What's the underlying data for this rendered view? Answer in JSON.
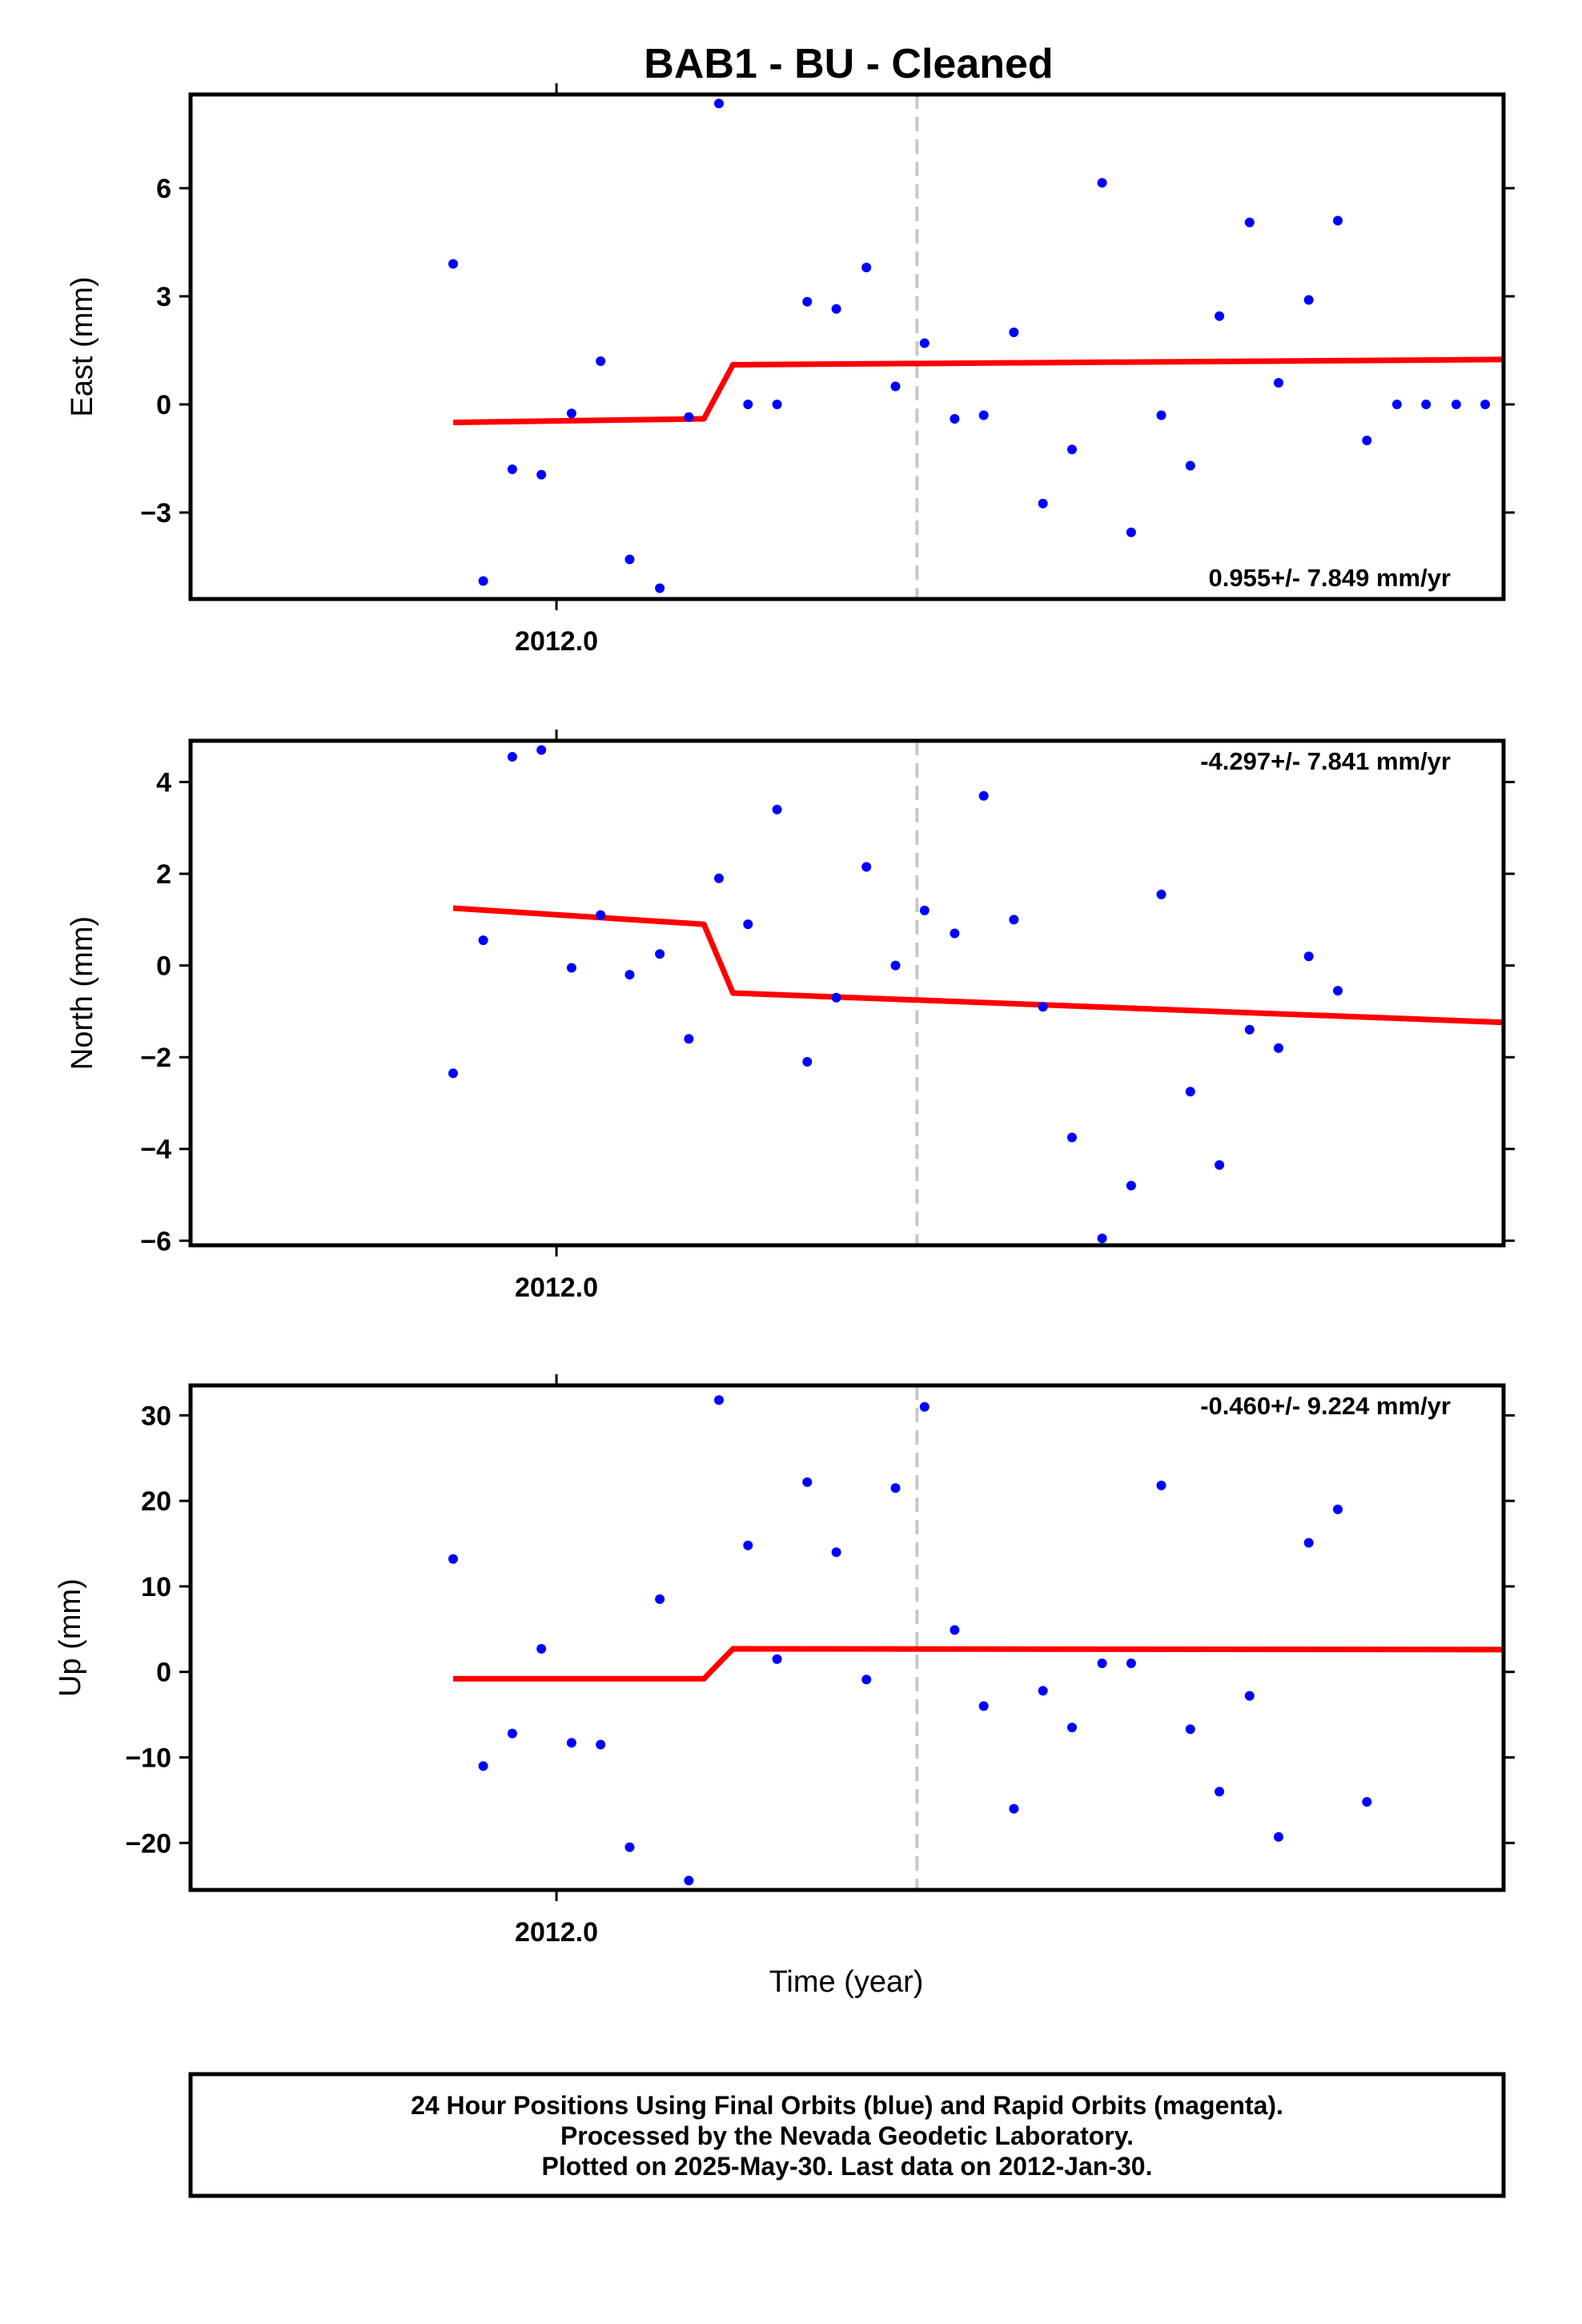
{
  "chart_data": [
    {
      "type": "scatter",
      "title": "BAB1  - BU - Cleaned",
      "ylabel": "East (mm)",
      "xlabel": "",
      "x_tick_labels": [
        "2012.0"
      ],
      "x_tick_values": [
        2012.0
      ],
      "ylim": [
        -5.4,
        8.6
      ],
      "xlim": [
        2011.966,
        2012.088
      ],
      "y_ticks": [
        6,
        3,
        0,
        -3
      ],
      "y_tick_labels": [
        "6",
        "3",
        "0",
        "−3"
      ],
      "rate_label": "0.955+/- 7.849 mm/yr",
      "event_line_x": 2012.0335,
      "grid": false,
      "series": [
        {
          "marker_color": "#0000ff",
          "x": [
            2011.9904,
            2011.9932,
            2011.9959,
            2011.9986,
            2012.0014,
            2012.0041,
            2012.0068,
            2012.0096,
            2012.0123,
            2012.0151,
            2012.0178,
            2012.0205,
            2012.0233,
            2012.026,
            2012.0288,
            2012.0315,
            2012.0342,
            2012.037,
            2012.0397,
            2012.0425,
            2012.0452,
            2012.0479,
            2012.0507,
            2012.0534,
            2012.0562,
            2012.0589,
            2012.0616,
            2012.0644,
            2012.0671,
            2012.0699,
            2012.0726,
            2012.0753,
            2012.0781,
            2012.0808,
            2012.0836,
            2012.0863,
            2012.089
          ],
          "y": [
            3.9,
            -4.9,
            -1.8,
            -1.95,
            -0.25,
            1.2,
            -4.3,
            -5.1,
            -0.35,
            8.35,
            0.0,
            0.0,
            2.85,
            2.65,
            3.8,
            0.5,
            1.7,
            -0.4,
            -0.3,
            2.0,
            -2.75,
            -1.25,
            6.15,
            -3.55,
            -0.3,
            -1.7,
            2.45,
            5.05,
            0.6,
            2.9,
            5.1,
            -1.0,
            0,
            0,
            0,
            0,
            0
          ]
        }
      ],
      "fit": {
        "color": "#ff0000",
        "x": [
          2011.9904,
          2012.0137,
          2012.0164,
          2012.089
        ],
        "y": [
          -0.5,
          -0.4,
          1.1,
          1.25
        ]
      }
    },
    {
      "type": "scatter",
      "ylabel": "North (mm)",
      "xlabel": "",
      "x_tick_labels": [
        "2012.0"
      ],
      "x_tick_values": [
        2012.0
      ],
      "ylim": [
        -6.1,
        4.9
      ],
      "xlim": [
        2011.966,
        2012.088
      ],
      "y_ticks": [
        4,
        2,
        0,
        -2,
        -4,
        -6
      ],
      "y_tick_labels": [
        "4",
        "2",
        "0",
        "−2",
        "−4",
        "−6"
      ],
      "rate_label": "-4.297+/- 7.841 mm/yr",
      "event_line_x": 2012.0335,
      "grid": false,
      "series": [
        {
          "marker_color": "#0000ff",
          "x": [
            2011.9904,
            2011.9932,
            2011.9959,
            2011.9986,
            2012.0014,
            2012.0041,
            2012.0068,
            2012.0096,
            2012.0123,
            2012.0151,
            2012.0178,
            2012.0205,
            2012.0233,
            2012.026,
            2012.0288,
            2012.0315,
            2012.0342,
            2012.037,
            2012.0397,
            2012.0425,
            2012.0452,
            2012.0479,
            2012.0507,
            2012.0534,
            2012.0562,
            2012.0589,
            2012.0616,
            2012.0644,
            2012.0671,
            2012.0699,
            2012.0726
          ],
          "y": [
            -2.35,
            0.55,
            4.55,
            4.7,
            -0.05,
            1.1,
            -0.2,
            0.25,
            -1.6,
            1.9,
            0.9,
            3.4,
            -2.1,
            -0.7,
            2.15,
            0.0,
            1.2,
            0.7,
            3.7,
            1.0,
            -0.9,
            -3.75,
            -5.95,
            -4.8,
            1.55,
            -2.75,
            -4.35,
            -1.4,
            -1.8,
            0.2,
            -0.55
          ]
        }
      ],
      "fit": {
        "color": "#ff0000",
        "x": [
          2011.9904,
          2012.0137,
          2012.0164,
          2012.089
        ],
        "y": [
          1.25,
          0.9,
          -0.6,
          -1.25
        ]
      }
    },
    {
      "type": "scatter",
      "ylabel": "Up (mm)",
      "xlabel": "Time (year)",
      "x_tick_labels": [
        "2012.0"
      ],
      "x_tick_values": [
        2012.0
      ],
      "ylim": [
        -25.5,
        33.5
      ],
      "xlim": [
        2011.966,
        2012.088
      ],
      "y_ticks": [
        30,
        20,
        10,
        0,
        -10,
        -20
      ],
      "y_tick_labels": [
        "30",
        "20",
        "10",
        "0",
        "−10",
        "−20"
      ],
      "rate_label": "-0.460+/- 9.224 mm/yr",
      "event_line_x": 2012.0335,
      "grid": false,
      "series": [
        {
          "marker_color": "#0000ff",
          "x": [
            2011.9904,
            2011.9932,
            2011.9959,
            2011.9986,
            2012.0014,
            2012.0041,
            2012.0068,
            2012.0096,
            2012.0123,
            2012.0151,
            2012.0178,
            2012.0205,
            2012.0233,
            2012.026,
            2012.0288,
            2012.0315,
            2012.0342,
            2012.037,
            2012.0397,
            2012.0425,
            2012.0452,
            2012.0479,
            2012.0507,
            2012.0534,
            2012.0562,
            2012.0589,
            2012.0616,
            2012.0644,
            2012.0671,
            2012.0699,
            2012.0726,
            2012.0753
          ],
          "y": [
            13.2,
            -11.0,
            -7.2,
            2.7,
            -8.3,
            -8.5,
            -20.5,
            8.5,
            -24.4,
            31.8,
            14.8,
            1.5,
            22.2,
            14.0,
            -0.9,
            21.5,
            31.0,
            4.9,
            -4.0,
            -16.0,
            -2.2,
            -6.5,
            1.0,
            1.0,
            21.8,
            -6.7,
            -14.0,
            -2.8,
            -19.3,
            15.1,
            19.0,
            -15.2
          ]
        }
      ],
      "fit": {
        "color": "#ff0000",
        "x": [
          2011.9904,
          2012.0137,
          2012.0164,
          2012.089
        ],
        "y": [
          -0.8,
          -0.8,
          2.7,
          2.6
        ]
      }
    }
  ],
  "footer": {
    "line1": "24 Hour Positions Using Final Orbits (blue) and Rapid Orbits (magenta).",
    "line2": "Processed by the Nevada Geodetic Laboratory.",
    "line3": "Plotted on 2025-May-30. Last data on 2012-Jan-30."
  }
}
